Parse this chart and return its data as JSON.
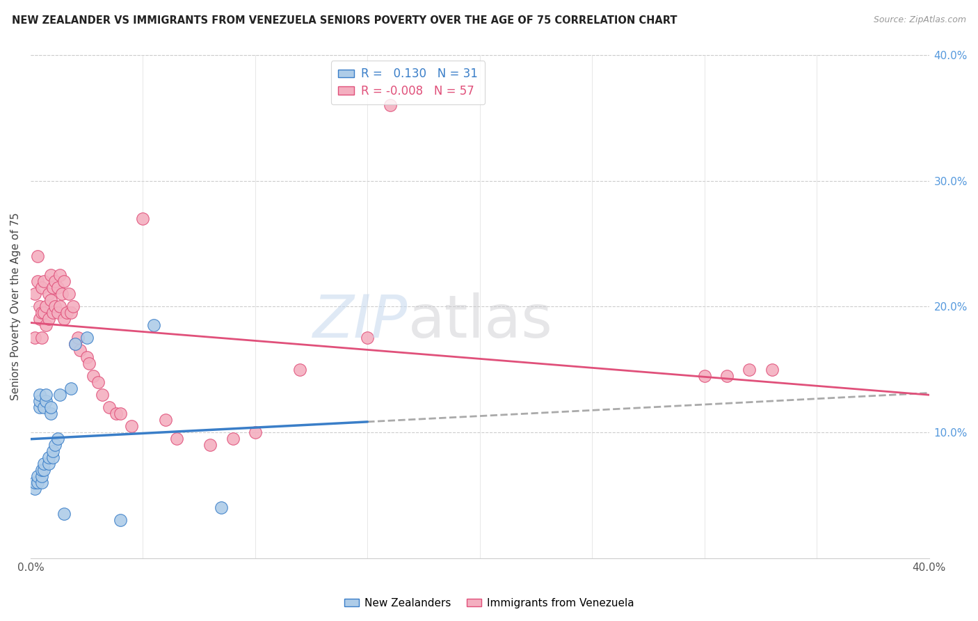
{
  "title": "NEW ZEALANDER VS IMMIGRANTS FROM VENEZUELA SENIORS POVERTY OVER THE AGE OF 75 CORRELATION CHART",
  "source": "Source: ZipAtlas.com",
  "ylabel": "Seniors Poverty Over the Age of 75",
  "xlim": [
    0.0,
    0.4
  ],
  "ylim": [
    0.0,
    0.4
  ],
  "R_nz": 0.13,
  "N_nz": 31,
  "R_vz": -0.008,
  "N_vz": 57,
  "color_nz": "#aecce8",
  "color_vz": "#f4afc0",
  "line_color_nz": "#3a7ec8",
  "line_color_vz": "#e0507a",
  "dash_color": "#aaaaaa",
  "nz_x": [
    0.002,
    0.002,
    0.003,
    0.003,
    0.004,
    0.004,
    0.004,
    0.005,
    0.005,
    0.005,
    0.006,
    0.006,
    0.006,
    0.007,
    0.007,
    0.008,
    0.008,
    0.009,
    0.009,
    0.01,
    0.01,
    0.011,
    0.012,
    0.013,
    0.015,
    0.018,
    0.02,
    0.025,
    0.04,
    0.055,
    0.085
  ],
  "nz_y": [
    0.055,
    0.06,
    0.06,
    0.065,
    0.12,
    0.125,
    0.13,
    0.06,
    0.065,
    0.07,
    0.07,
    0.075,
    0.12,
    0.125,
    0.13,
    0.075,
    0.08,
    0.115,
    0.12,
    0.08,
    0.085,
    0.09,
    0.095,
    0.13,
    0.035,
    0.135,
    0.17,
    0.175,
    0.03,
    0.185,
    0.04
  ],
  "vz_x": [
    0.002,
    0.002,
    0.003,
    0.003,
    0.004,
    0.004,
    0.005,
    0.005,
    0.005,
    0.006,
    0.006,
    0.007,
    0.007,
    0.008,
    0.008,
    0.009,
    0.009,
    0.01,
    0.01,
    0.011,
    0.011,
    0.012,
    0.012,
    0.013,
    0.013,
    0.014,
    0.015,
    0.015,
    0.016,
    0.017,
    0.018,
    0.019,
    0.02,
    0.021,
    0.022,
    0.025,
    0.026,
    0.028,
    0.03,
    0.032,
    0.035,
    0.038,
    0.04,
    0.045,
    0.05,
    0.06,
    0.065,
    0.08,
    0.09,
    0.1,
    0.12,
    0.15,
    0.16,
    0.3,
    0.31,
    0.32,
    0.33
  ],
  "vz_y": [
    0.175,
    0.21,
    0.22,
    0.24,
    0.19,
    0.2,
    0.175,
    0.195,
    0.215,
    0.195,
    0.22,
    0.185,
    0.2,
    0.19,
    0.21,
    0.205,
    0.225,
    0.195,
    0.215,
    0.2,
    0.22,
    0.195,
    0.215,
    0.2,
    0.225,
    0.21,
    0.19,
    0.22,
    0.195,
    0.21,
    0.195,
    0.2,
    0.17,
    0.175,
    0.165,
    0.16,
    0.155,
    0.145,
    0.14,
    0.13,
    0.12,
    0.115,
    0.115,
    0.105,
    0.27,
    0.11,
    0.095,
    0.09,
    0.095,
    0.1,
    0.15,
    0.175,
    0.36,
    0.145,
    0.145,
    0.15,
    0.15
  ]
}
